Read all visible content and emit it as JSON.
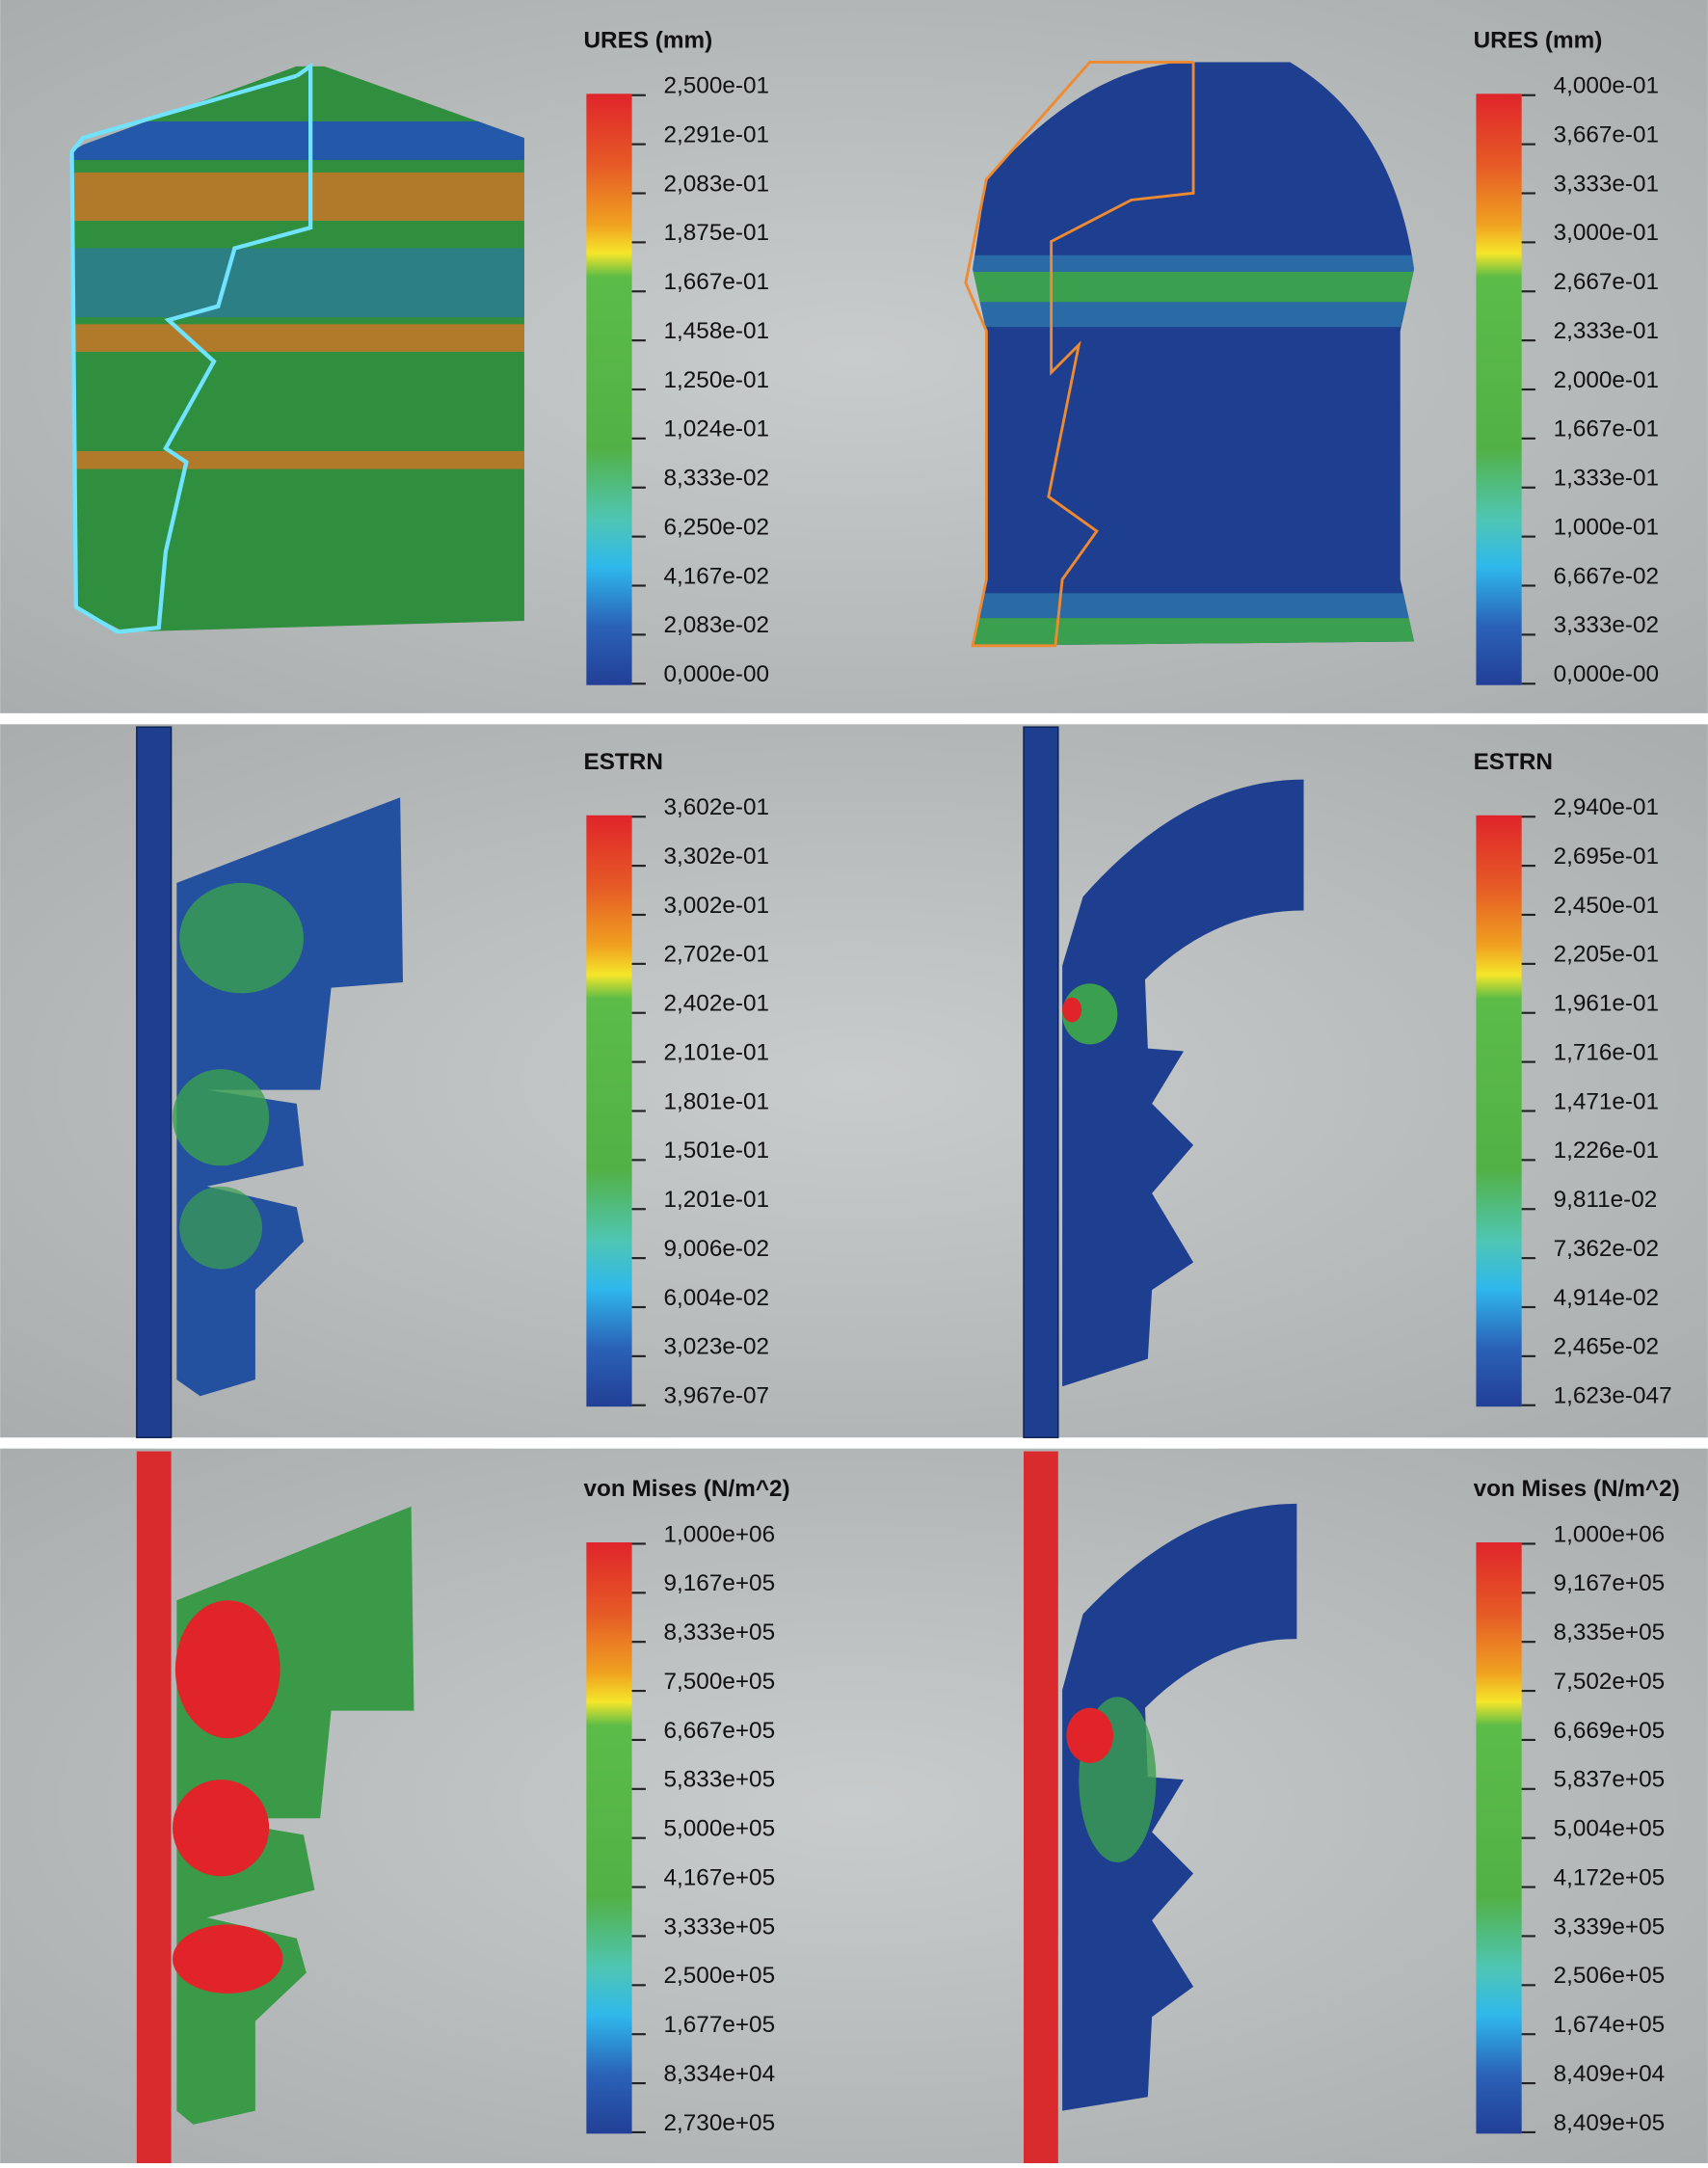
{
  "panels": [
    {
      "title": "URES (mm)",
      "labels": [
        "2,500e-01",
        "2,291e-01",
        "2,083e-01",
        "1,875e-01",
        "1,667e-01",
        "1,458e-01",
        "1,250e-01",
        "1,024e-01",
        "8,333e-02",
        "6,250e-02",
        "4,167e-02",
        "2,083e-02",
        "0,000e-00"
      ]
    },
    {
      "title": "URES (mm)",
      "labels": [
        "4,000e-01",
        "3,667e-01",
        "3,333e-01",
        "3,000e-01",
        "2,667e-01",
        "2,333e-01",
        "2,000e-01",
        "1,667e-01",
        "1,333e-01",
        "1,000e-01",
        "6,667e-02",
        "3,333e-02",
        "0,000e-00"
      ]
    },
    {
      "title": "ESTRN",
      "labels": [
        "3,602e-01",
        "3,302e-01",
        "3,002e-01",
        "2,702e-01",
        "2,402e-01",
        "2,101e-01",
        "1,801e-01",
        "1,501e-01",
        "1,201e-01",
        "9,006e-02",
        "6,004e-02",
        "3,023e-02",
        "3,967e-07"
      ]
    },
    {
      "title": "ESTRN",
      "labels": [
        "2,940e-01",
        "2,695e-01",
        "2,450e-01",
        "2,205e-01",
        "1,961e-01",
        "1,716e-01",
        "1,471e-01",
        "1,226e-01",
        "9,811e-02",
        "7,362e-02",
        "4,914e-02",
        "2,465e-02",
        "1,623e-047"
      ]
    },
    {
      "title": "von Mises (N/m^2)",
      "labels": [
        "1,000e+06",
        "9,167e+05",
        "8,333e+05",
        "7,500e+05",
        "6,667e+05",
        "5,833e+05",
        "5,000e+05",
        "4,167e+05",
        "3,333e+05",
        "2,500e+05",
        "1,677e+05",
        "8,334e+04",
        "2,730e+05"
      ]
    },
    {
      "title": "von Mises (N/m^2)",
      "labels": [
        "1,000e+06",
        "9,167e+05",
        "8,335e+05",
        "7,502e+05",
        "6,669e+05",
        "5,837e+05",
        "5,004e+05",
        "4,172e+05",
        "3,339e+05",
        "2,506e+05",
        "1,674e+05",
        "8,409e+04",
        "8,409e+05"
      ]
    }
  ]
}
